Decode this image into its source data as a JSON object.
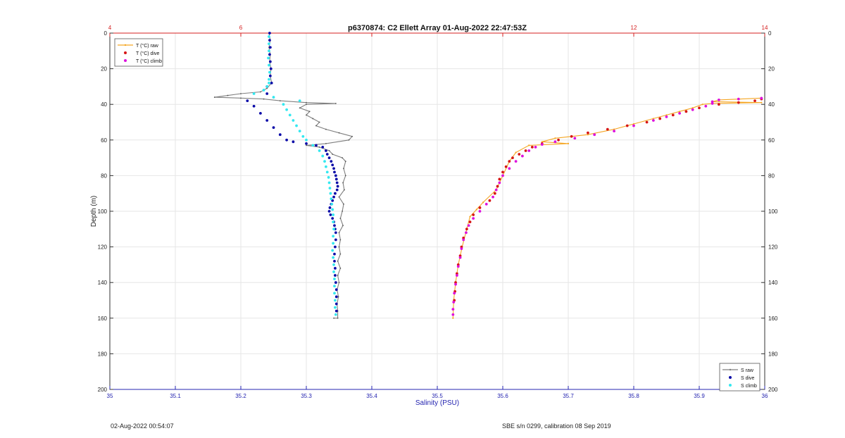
{
  "footer": {
    "left": "02-Aug-2022 00:54:07",
    "right": "SBE s/n 0299, calibration 08 Sep 2019"
  },
  "colors": {
    "s_raw": "#7f7f7f",
    "s_dive": "#0a0aa8",
    "s_climb": "#34e8f0",
    "t_raw": "#f5a623",
    "t_dive": "#d61616",
    "t_climb": "#dd10dd",
    "salinity_axis": "#2424b0",
    "temperature_axis": "#d42020",
    "axis_black": "#333333"
  },
  "chart_data": {
    "type": "scatter",
    "title": "p6370874: C2 Ellett Array 01-Aug-2022 22:47:53Z",
    "xlabel": "Salinity (PSU)",
    "ylabel": "Depth (m)",
    "xlim": [
      35,
      36
    ],
    "x_ticks": [
      "35",
      "35.1",
      "35.2",
      "35.3",
      "35.4",
      "35.5",
      "35.6",
      "35.7",
      "35.8",
      "35.9",
      "36"
    ],
    "x2label": "",
    "x2lim": [
      4,
      14
    ],
    "x2_ticks": [
      "4",
      "6",
      "8",
      "10",
      "12",
      "14"
    ],
    "x2_ticks_shown": [
      "4",
      "6",
      "12",
      "14"
    ],
    "ylim": [
      0,
      200
    ],
    "y_reversed": true,
    "y_ticks": [
      "0",
      "20",
      "40",
      "60",
      "80",
      "100",
      "120",
      "140",
      "160",
      "180",
      "200"
    ],
    "grid": true,
    "legends": [
      {
        "placement": "top-left",
        "entries": [
          {
            "label": "T (°C) raw",
            "series": "t_raw"
          },
          {
            "label": "T (°C) dive",
            "series": "t_dive"
          },
          {
            "label": "T (°C) climb",
            "series": "t_climb"
          }
        ]
      },
      {
        "placement": "bottom-right",
        "entries": [
          {
            "label": "S raw",
            "series": "s_raw"
          },
          {
            "label": "S dive",
            "series": "s_dive"
          },
          {
            "label": "S climb",
            "series": "s_climb"
          }
        ]
      }
    ],
    "series": [
      {
        "key": "s_raw",
        "name": "S raw",
        "axis": "salinity",
        "style": "line",
        "points": [
          [
            35.243,
            0
          ],
          [
            35.245,
            4
          ],
          [
            35.243,
            8
          ],
          [
            35.245,
            12
          ],
          [
            35.244,
            16
          ],
          [
            35.246,
            20
          ],
          [
            35.245,
            24
          ],
          [
            35.247,
            28
          ],
          [
            35.24,
            31
          ],
          [
            35.23,
            33
          ],
          [
            35.2,
            34
          ],
          [
            35.18,
            35
          ],
          [
            35.16,
            36
          ],
          [
            35.2,
            36.5
          ],
          [
            35.235,
            37
          ],
          [
            35.26,
            38
          ],
          [
            35.3,
            39
          ],
          [
            35.345,
            39.5
          ],
          [
            35.3,
            40
          ],
          [
            35.29,
            42
          ],
          [
            35.305,
            44
          ],
          [
            35.3,
            46
          ],
          [
            35.31,
            48
          ],
          [
            35.32,
            50
          ],
          [
            35.315,
            52
          ],
          [
            35.33,
            54
          ],
          [
            35.35,
            56
          ],
          [
            35.37,
            58
          ],
          [
            35.365,
            60
          ],
          [
            35.33,
            62
          ],
          [
            35.3,
            63
          ],
          [
            35.32,
            64
          ],
          [
            35.335,
            66
          ],
          [
            35.34,
            68
          ],
          [
            35.355,
            70
          ],
          [
            35.36,
            72
          ],
          [
            35.357,
            76
          ],
          [
            35.36,
            80
          ],
          [
            35.356,
            84
          ],
          [
            35.358,
            88
          ],
          [
            35.35,
            92
          ],
          [
            35.357,
            96
          ],
          [
            35.355,
            100
          ],
          [
            35.352,
            104
          ],
          [
            35.356,
            108
          ],
          [
            35.35,
            112
          ],
          [
            35.352,
            116
          ],
          [
            35.35,
            120
          ],
          [
            35.352,
            124
          ],
          [
            35.348,
            128
          ],
          [
            35.352,
            132
          ],
          [
            35.348,
            136
          ],
          [
            35.35,
            140
          ],
          [
            35.347,
            144
          ],
          [
            35.349,
            148
          ],
          [
            35.347,
            152
          ],
          [
            35.348,
            156
          ],
          [
            35.348,
            160
          ],
          [
            35.342,
            160
          ]
        ]
      },
      {
        "key": "s_dive",
        "name": "S dive",
        "axis": "salinity",
        "style": "dots",
        "points": [
          [
            35.244,
            0
          ],
          [
            35.244,
            4
          ],
          [
            35.245,
            8
          ],
          [
            35.244,
            12
          ],
          [
            35.245,
            16
          ],
          [
            35.246,
            20
          ],
          [
            35.245,
            24
          ],
          [
            35.247,
            28
          ],
          [
            35.24,
            30
          ],
          [
            35.24,
            34
          ],
          [
            35.21,
            38
          ],
          [
            35.22,
            41
          ],
          [
            35.23,
            45
          ],
          [
            35.24,
            49
          ],
          [
            35.25,
            53
          ],
          [
            35.26,
            57
          ],
          [
            35.27,
            60
          ],
          [
            35.28,
            61
          ],
          [
            35.3,
            62
          ],
          [
            35.315,
            63
          ],
          [
            35.325,
            64
          ],
          [
            35.33,
            66
          ],
          [
            35.332,
            68
          ],
          [
            35.335,
            70
          ],
          [
            35.338,
            72
          ],
          [
            35.34,
            74
          ],
          [
            35.342,
            76
          ],
          [
            35.343,
            78
          ],
          [
            35.345,
            80
          ],
          [
            35.346,
            82
          ],
          [
            35.347,
            84
          ],
          [
            35.348,
            86
          ],
          [
            35.347,
            88
          ],
          [
            35.344,
            90
          ],
          [
            35.342,
            92
          ],
          [
            35.34,
            94
          ],
          [
            35.338,
            96
          ],
          [
            35.336,
            98
          ],
          [
            35.335,
            100
          ],
          [
            35.337,
            102
          ],
          [
            35.34,
            104
          ],
          [
            35.342,
            106
          ],
          [
            35.343,
            108
          ],
          [
            35.344,
            110
          ],
          [
            35.345,
            112
          ],
          [
            35.345,
            116
          ],
          [
            35.344,
            120
          ],
          [
            35.343,
            124
          ],
          [
            35.343,
            128
          ],
          [
            35.344,
            132
          ],
          [
            35.344,
            136
          ],
          [
            35.345,
            140
          ],
          [
            35.346,
            144
          ],
          [
            35.346,
            148
          ],
          [
            35.346,
            152
          ],
          [
            35.346,
            156
          ]
        ]
      },
      {
        "key": "s_climb",
        "name": "S climb",
        "axis": "salinity",
        "style": "dots",
        "points": [
          [
            35.243,
            2
          ],
          [
            35.243,
            6
          ],
          [
            35.243,
            10
          ],
          [
            35.242,
            14
          ],
          [
            35.243,
            18
          ],
          [
            35.244,
            22
          ],
          [
            35.243,
            26
          ],
          [
            35.243,
            28
          ],
          [
            35.24,
            30
          ],
          [
            35.235,
            32
          ],
          [
            35.22,
            34
          ],
          [
            35.25,
            36
          ],
          [
            35.29,
            38
          ],
          [
            35.265,
            40
          ],
          [
            35.27,
            43
          ],
          [
            35.275,
            46
          ],
          [
            35.28,
            49
          ],
          [
            35.285,
            52
          ],
          [
            35.29,
            55
          ],
          [
            35.295,
            58
          ],
          [
            35.3,
            60
          ],
          [
            35.31,
            63
          ],
          [
            35.32,
            66
          ],
          [
            35.325,
            69
          ],
          [
            35.328,
            72
          ],
          [
            35.33,
            75
          ],
          [
            35.332,
            78
          ],
          [
            35.334,
            81
          ],
          [
            35.335,
            84
          ],
          [
            35.336,
            87
          ],
          [
            35.337,
            90
          ],
          [
            35.338,
            93
          ],
          [
            35.339,
            96
          ],
          [
            35.34,
            99
          ],
          [
            35.341,
            102
          ],
          [
            35.341,
            106
          ],
          [
            35.342,
            110
          ],
          [
            35.341,
            114
          ],
          [
            35.341,
            118
          ],
          [
            35.34,
            122
          ],
          [
            35.341,
            126
          ],
          [
            35.342,
            130
          ],
          [
            35.342,
            134
          ],
          [
            35.343,
            138
          ],
          [
            35.343,
            142
          ],
          [
            35.343,
            146
          ],
          [
            35.344,
            150
          ],
          [
            35.344,
            154
          ],
          [
            35.345,
            158
          ]
        ]
      },
      {
        "key": "t_raw",
        "name": "T (°C) raw",
        "axis": "temperature",
        "style": "line",
        "points": [
          [
            13.95,
            36.5
          ],
          [
            13.3,
            37.5
          ],
          [
            13.2,
            38.5
          ],
          [
            13.95,
            39
          ],
          [
            13.2,
            39.5
          ],
          [
            13.05,
            40
          ],
          [
            12.9,
            42
          ],
          [
            12.7,
            44
          ],
          [
            12.5,
            46
          ],
          [
            12.3,
            48
          ],
          [
            12.0,
            51
          ],
          [
            11.7,
            54
          ],
          [
            11.3,
            57
          ],
          [
            10.8,
            59
          ],
          [
            10.6,
            61
          ],
          [
            11.0,
            62
          ],
          [
            10.4,
            63
          ],
          [
            10.2,
            67
          ],
          [
            10.1,
            72
          ],
          [
            10.0,
            80
          ],
          [
            9.9,
            88
          ],
          [
            9.7,
            95
          ],
          [
            9.6,
            99
          ],
          [
            9.5,
            103
          ],
          [
            9.45,
            110
          ],
          [
            9.38,
            120
          ],
          [
            9.32,
            130
          ],
          [
            9.28,
            140
          ],
          [
            9.25,
            150
          ],
          [
            9.24,
            160
          ]
        ]
      },
      {
        "key": "t_dive",
        "name": "T (°C) dive",
        "axis": "temperature",
        "style": "dots",
        "points": [
          [
            13.95,
            37
          ],
          [
            13.85,
            38
          ],
          [
            13.6,
            39
          ],
          [
            13.3,
            40
          ],
          [
            13.0,
            42
          ],
          [
            12.8,
            44
          ],
          [
            12.6,
            46
          ],
          [
            12.4,
            48
          ],
          [
            12.2,
            50
          ],
          [
            11.9,
            52
          ],
          [
            11.6,
            54
          ],
          [
            11.3,
            56
          ],
          [
            11.05,
            58
          ],
          [
            10.85,
            60
          ],
          [
            10.6,
            62
          ],
          [
            10.45,
            64
          ],
          [
            10.35,
            66
          ],
          [
            10.25,
            68
          ],
          [
            10.15,
            70
          ],
          [
            10.1,
            72
          ],
          [
            10.05,
            75
          ],
          [
            10.0,
            78
          ],
          [
            9.95,
            82
          ],
          [
            9.92,
            86
          ],
          [
            9.88,
            90
          ],
          [
            9.8,
            94
          ],
          [
            9.65,
            98
          ],
          [
            9.55,
            102
          ],
          [
            9.5,
            106
          ],
          [
            9.45,
            110
          ],
          [
            9.4,
            115
          ],
          [
            9.37,
            120
          ],
          [
            9.35,
            125
          ],
          [
            9.32,
            130
          ],
          [
            9.3,
            135
          ],
          [
            9.28,
            140
          ],
          [
            9.27,
            145
          ],
          [
            9.26,
            150
          ]
        ]
      },
      {
        "key": "t_climb",
        "name": "T (°C) climb",
        "axis": "temperature",
        "style": "dots",
        "points": [
          [
            13.95,
            36.5
          ],
          [
            13.6,
            37
          ],
          [
            13.3,
            37.5
          ],
          [
            13.2,
            38.5
          ],
          [
            13.2,
            39.5
          ],
          [
            13.1,
            41
          ],
          [
            12.9,
            43
          ],
          [
            12.7,
            45
          ],
          [
            12.5,
            47
          ],
          [
            12.3,
            49
          ],
          [
            12.0,
            52
          ],
          [
            11.7,
            55
          ],
          [
            11.4,
            57
          ],
          [
            11.1,
            59
          ],
          [
            10.8,
            61
          ],
          [
            10.6,
            62.5
          ],
          [
            10.5,
            64
          ],
          [
            10.4,
            66
          ],
          [
            10.3,
            69
          ],
          [
            10.2,
            72
          ],
          [
            10.1,
            76
          ],
          [
            10.0,
            80
          ],
          [
            9.95,
            84
          ],
          [
            9.9,
            88
          ],
          [
            9.85,
            92
          ],
          [
            9.75,
            96
          ],
          [
            9.65,
            100
          ],
          [
            9.55,
            104
          ],
          [
            9.48,
            108
          ],
          [
            9.44,
            112
          ],
          [
            9.4,
            116
          ],
          [
            9.37,
            121
          ],
          [
            9.35,
            126
          ],
          [
            9.32,
            131
          ],
          [
            9.3,
            136
          ],
          [
            9.28,
            141
          ],
          [
            9.26,
            146
          ],
          [
            9.25,
            151
          ],
          [
            9.24,
            155
          ],
          [
            9.24,
            158
          ]
        ]
      }
    ]
  }
}
